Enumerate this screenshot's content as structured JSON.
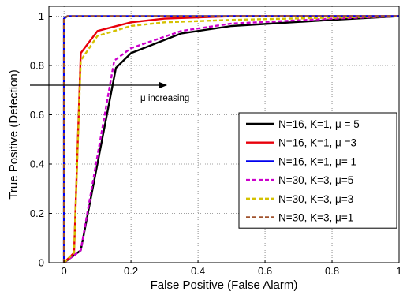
{
  "chart_data": {
    "type": "line",
    "xlabel": "False Positive (False Alarm)",
    "ylabel": "True Positive (Detection)",
    "xlim": [
      0,
      1
    ],
    "ylim": [
      0,
      1
    ],
    "xticks": [
      "0",
      "0.2",
      "0.4",
      "0.6",
      "0.8",
      "1"
    ],
    "yticks": [
      "0",
      "0.2",
      "0.4",
      "0.6",
      "0.8",
      "1"
    ],
    "grid": "on (dotted)",
    "legend_position": "bottom-right",
    "annotation": "μ increasing",
    "series": [
      {
        "name": "N=16, K=1, μ = 5",
        "color": "#000000",
        "style": "solid",
        "x": [
          0,
          0.05,
          0.155,
          0.2,
          0.35,
          0.5,
          0.8,
          1
        ],
        "y": [
          0,
          0.05,
          0.79,
          0.85,
          0.93,
          0.96,
          0.985,
          1
        ]
      },
      {
        "name": "N=16, K=1, μ =3",
        "color": "#e8000b",
        "style": "solid",
        "x": [
          0,
          0.03,
          0.05,
          0.1,
          0.2,
          0.3,
          0.5,
          1
        ],
        "y": [
          0,
          0.04,
          0.85,
          0.94,
          0.975,
          0.99,
          1,
          1
        ]
      },
      {
        "name": "N=16, K=1, μ= 1",
        "color": "#0000ee",
        "style": "solid",
        "x": [
          0,
          0,
          0.01,
          1
        ],
        "y": [
          0,
          0.99,
          1,
          1
        ]
      },
      {
        "name": "N=30, K=3, μ=5",
        "color": "#cc00cc",
        "style": "dashed",
        "x": [
          0,
          0.05,
          0.15,
          0.2,
          0.35,
          0.5,
          0.8,
          1
        ],
        "y": [
          0,
          0.05,
          0.82,
          0.87,
          0.94,
          0.97,
          0.99,
          1
        ]
      },
      {
        "name": "N=30, K=3, μ=3",
        "color": "#d4c100",
        "style": "dashed",
        "x": [
          0,
          0.03,
          0.05,
          0.1,
          0.2,
          0.3,
          0.5,
          1
        ],
        "y": [
          0,
          0.04,
          0.82,
          0.92,
          0.96,
          0.975,
          0.985,
          1
        ]
      },
      {
        "name": "N=30, K=3, μ=1",
        "color": "#a0522d",
        "style": "dashed",
        "x": [
          0,
          0,
          0.01,
          1
        ],
        "y": [
          0,
          0.99,
          1,
          1
        ]
      }
    ]
  }
}
